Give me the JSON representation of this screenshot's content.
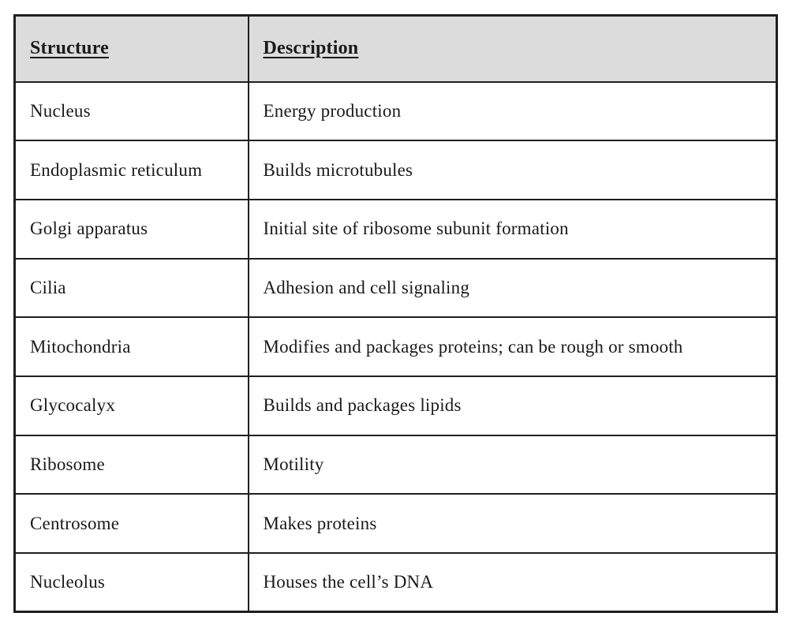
{
  "page": {
    "background": "#ffffff"
  },
  "table": {
    "headers": {
      "structure": "Structure",
      "description": "Description"
    },
    "rows": [
      {
        "structure": "Nucleus",
        "description": "Energy production"
      },
      {
        "structure": "Endoplasmic reticulum",
        "description": "Builds microtubules"
      },
      {
        "structure": "Golgi apparatus",
        "description": "Initial site of ribosome subunit formation"
      },
      {
        "structure": "Cilia",
        "description": "Adhesion and cell signaling"
      },
      {
        "structure": "Mitochondria",
        "description": "Modifies and packages proteins; can be rough or smooth"
      },
      {
        "structure": "Glycocalyx",
        "description": "Builds and packages lipids"
      },
      {
        "structure": "Ribosome",
        "description": "Motility"
      },
      {
        "structure": "Centrosome",
        "description": "Makes proteins"
      },
      {
        "structure": "Nucleolus",
        "description": "Houses the cell’s DNA"
      }
    ],
    "colors": {
      "header_bg": "#dcdcdc",
      "border": "#1f1f1f",
      "text": "#1a1a1a"
    }
  }
}
